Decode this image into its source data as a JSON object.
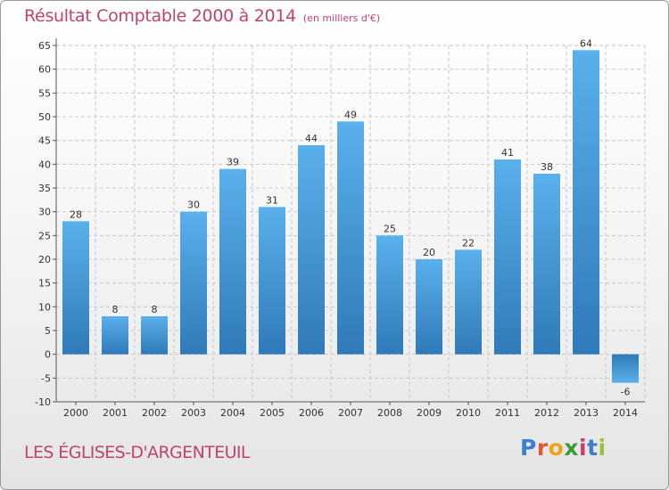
{
  "title": "Résultat Comptable 2000 à 2014",
  "unit_note": "(en milliers d'€)",
  "commune": "LES ÉGLISES-D'ARGENTEUIL",
  "logo": {
    "letters": [
      "P",
      "r",
      "o",
      "x",
      "i",
      "t",
      "i"
    ],
    "colors": [
      "#3a7fd0",
      "#e05a2a",
      "#f0a21a",
      "#3a9a3a",
      "#d23a6b",
      "#3a7fd0",
      "#9ac33a"
    ]
  },
  "colors": {
    "bar_light": "#5ab0ec",
    "bar_dark": "#2f7ab8",
    "grid": "#c8c8c8",
    "accent": "#c0436d"
  },
  "chart_data": {
    "type": "bar",
    "title": "Résultat Comptable 2000 à 2014",
    "ylabel": "en milliers d'€",
    "xlabel": "",
    "categories": [
      "2000",
      "2001",
      "2002",
      "2003",
      "2004",
      "2005",
      "2006",
      "2007",
      "2008",
      "2009",
      "2010",
      "2011",
      "2012",
      "2013",
      "2014"
    ],
    "values": [
      28,
      8,
      8,
      30,
      39,
      31,
      44,
      49,
      25,
      20,
      22,
      41,
      38,
      64,
      -6
    ],
    "ylim": [
      -10,
      65
    ],
    "yticks": [
      -10,
      -5,
      0,
      5,
      10,
      15,
      20,
      25,
      30,
      35,
      40,
      45,
      50,
      55,
      60,
      65
    ],
    "grid": true
  }
}
